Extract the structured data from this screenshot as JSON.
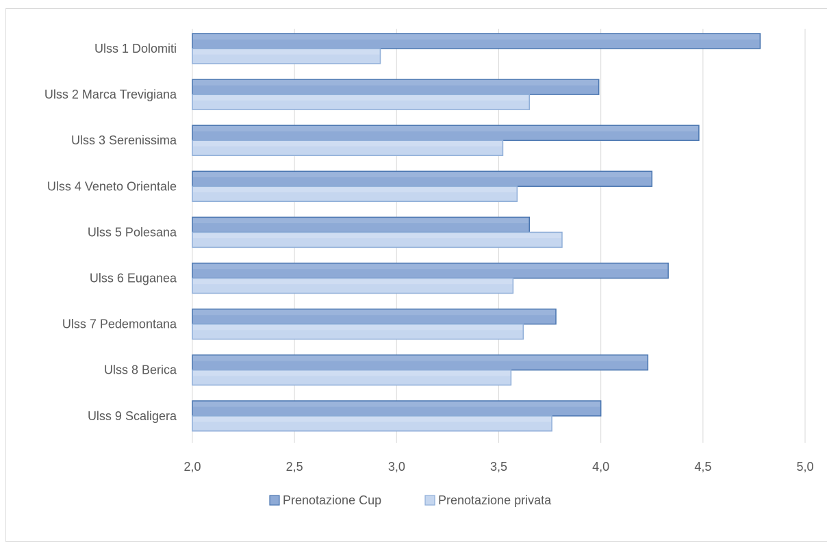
{
  "chart_data": {
    "type": "bar",
    "orientation": "horizontal",
    "categories": [
      "Ulss 1 Dolomiti",
      "Ulss 2 Marca Trevigiana",
      "Ulss 3 Serenissima",
      "Ulss 4 Veneto Orientale",
      "Ulss 5 Polesana",
      "Ulss 6 Euganea",
      "Ulss 7 Pedemontana",
      "Ulss 8 Berica",
      "Ulss 9 Scaligera"
    ],
    "series": [
      {
        "name": "Prenotazione Cup",
        "color": "#8eaad6",
        "border": "#4a76b0",
        "values": [
          4.78,
          3.99,
          4.48,
          4.25,
          3.65,
          4.33,
          3.78,
          4.23,
          4.0
        ]
      },
      {
        "name": "Prenotazione privata",
        "color": "#c5d6ef",
        "border": "#8faed8",
        "values": [
          2.92,
          3.65,
          3.52,
          3.59,
          3.81,
          3.57,
          3.62,
          3.56,
          3.76
        ]
      }
    ],
    "xlim": [
      2.0,
      5.0
    ],
    "x_ticks": [
      "2,0",
      "2,5",
      "3,0",
      "3,5",
      "4,0",
      "4,5",
      "5,0"
    ],
    "x_tick_values": [
      2.0,
      2.5,
      3.0,
      3.5,
      4.0,
      4.5,
      5.0
    ],
    "grid": "vertical",
    "legend_position": "bottom"
  }
}
